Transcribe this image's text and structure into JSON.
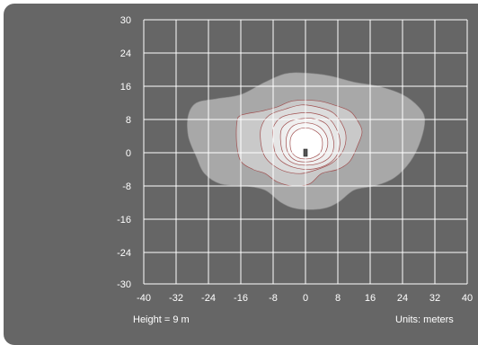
{
  "chart_data": {
    "type": "contour",
    "title": "",
    "xlabel": "",
    "ylabel": "",
    "xlim": [
      -40,
      40
    ],
    "ylim": [
      -30,
      30
    ],
    "x_ticks": [
      -40,
      -32,
      -24,
      -16,
      -8,
      0,
      8,
      16,
      24,
      32,
      40
    ],
    "y_ticks": [
      30,
      24,
      16,
      8,
      0,
      -8,
      -16,
      -24,
      -30
    ],
    "grid": true,
    "luminaire": {
      "x": 0,
      "y": 0
    },
    "contours": [
      {
        "level": 1,
        "fill": "#a8a8a8",
        "points": [
          [
            -29,
            9
          ],
          [
            -27,
            12
          ],
          [
            -22,
            13
          ],
          [
            -16,
            14
          ],
          [
            -10,
            17
          ],
          [
            -5,
            19
          ],
          [
            0,
            19.2
          ],
          [
            6,
            18.5
          ],
          [
            12,
            17
          ],
          [
            18,
            16
          ],
          [
            24,
            14
          ],
          [
            28,
            11
          ],
          [
            29.5,
            8
          ],
          [
            28.5,
            3
          ],
          [
            26,
            -2
          ],
          [
            22,
            -6
          ],
          [
            17,
            -8
          ],
          [
            12,
            -9
          ],
          [
            8,
            -12
          ],
          [
            4,
            -13.5
          ],
          [
            -2,
            -13.5
          ],
          [
            -6,
            -12
          ],
          [
            -10,
            -9
          ],
          [
            -15,
            -8
          ],
          [
            -21,
            -7.5
          ],
          [
            -25,
            -5
          ],
          [
            -27,
            -1
          ],
          [
            -29,
            4
          ]
        ]
      },
      {
        "level": 2,
        "fill": "#c9c9c9",
        "points": [
          [
            -17,
            7
          ],
          [
            -16,
            9
          ],
          [
            -11,
            10
          ],
          [
            -7,
            11
          ],
          [
            -3,
            12.5
          ],
          [
            3,
            12.5
          ],
          [
            7,
            11.5
          ],
          [
            11,
            10
          ],
          [
            13,
            7.5
          ],
          [
            14,
            5
          ],
          [
            13,
            2
          ],
          [
            11,
            -2
          ],
          [
            8,
            -4
          ],
          [
            4,
            -5
          ],
          [
            1,
            -7.5
          ],
          [
            -3,
            -8
          ],
          [
            -7,
            -7
          ],
          [
            -10,
            -5
          ],
          [
            -13,
            -4
          ],
          [
            -16,
            -2
          ],
          [
            -17,
            2
          ]
        ]
      },
      {
        "level": 3,
        "fill": "#dcdcdc",
        "points": [
          [
            -11,
            6
          ],
          [
            -9,
            9
          ],
          [
            -5,
            10.5
          ],
          [
            -1,
            11.5
          ],
          [
            3,
            11
          ],
          [
            7,
            9.5
          ],
          [
            9.5,
            6
          ],
          [
            10,
            3
          ],
          [
            9,
            0
          ],
          [
            6.5,
            -2.5
          ],
          [
            3,
            -4
          ],
          [
            -1,
            -5
          ],
          [
            -5,
            -4.5
          ],
          [
            -8,
            -3
          ],
          [
            -10,
            -1
          ],
          [
            -11,
            2
          ]
        ]
      },
      {
        "level": 4,
        "fill": "#e6e6e6",
        "points": [
          [
            -8,
            6
          ],
          [
            -6,
            8.5
          ],
          [
            -2,
            9.5
          ],
          [
            2,
            9.5
          ],
          [
            6,
            8
          ],
          [
            8,
            5
          ],
          [
            8.5,
            2
          ],
          [
            7.5,
            -1
          ],
          [
            5,
            -3
          ],
          [
            1,
            -4
          ],
          [
            -3,
            -3.5
          ],
          [
            -6,
            -2
          ],
          [
            -7.5,
            0
          ],
          [
            -8,
            3
          ]
        ]
      },
      {
        "level": 5,
        "fill": "#efefef",
        "points": [
          [
            -6,
            5.5
          ],
          [
            -4,
            7.5
          ],
          [
            -1,
            8.2
          ],
          [
            2,
            8.2
          ],
          [
            5,
            7
          ],
          [
            6.5,
            4.5
          ],
          [
            7,
            1.5
          ],
          [
            6,
            -1
          ],
          [
            3.5,
            -2.5
          ],
          [
            0,
            -3
          ],
          [
            -3,
            -2.5
          ],
          [
            -5,
            -1
          ],
          [
            -6,
            1.5
          ]
        ]
      },
      {
        "level": 6,
        "fill": "#f6f6f6",
        "points": [
          [
            -4.5,
            4.5
          ],
          [
            -3,
            6.5
          ],
          [
            0,
            7.2
          ],
          [
            3,
            6.5
          ],
          [
            5,
            4.5
          ],
          [
            5.5,
            2
          ],
          [
            4.5,
            -0.5
          ],
          [
            2.5,
            -1.8
          ],
          [
            0,
            -2.2
          ],
          [
            -2.5,
            -1.8
          ],
          [
            -4.2,
            -0.2
          ],
          [
            -4.8,
            2
          ]
        ]
      },
      {
        "level": 7,
        "fill": "#ffffff",
        "points": [
          [
            -3.5,
            4
          ],
          [
            -2,
            5.5
          ],
          [
            0,
            6
          ],
          [
            2,
            5.5
          ],
          [
            3.8,
            4
          ],
          [
            4.2,
            1.8
          ],
          [
            3.5,
            -0.2
          ],
          [
            1.8,
            -1.2
          ],
          [
            0,
            -1.5
          ],
          [
            -1.8,
            -1.2
          ],
          [
            -3.3,
            0
          ],
          [
            -3.8,
            2
          ]
        ]
      }
    ],
    "footer_left": "Height = 9 m",
    "footer_right": "Units: meters"
  }
}
